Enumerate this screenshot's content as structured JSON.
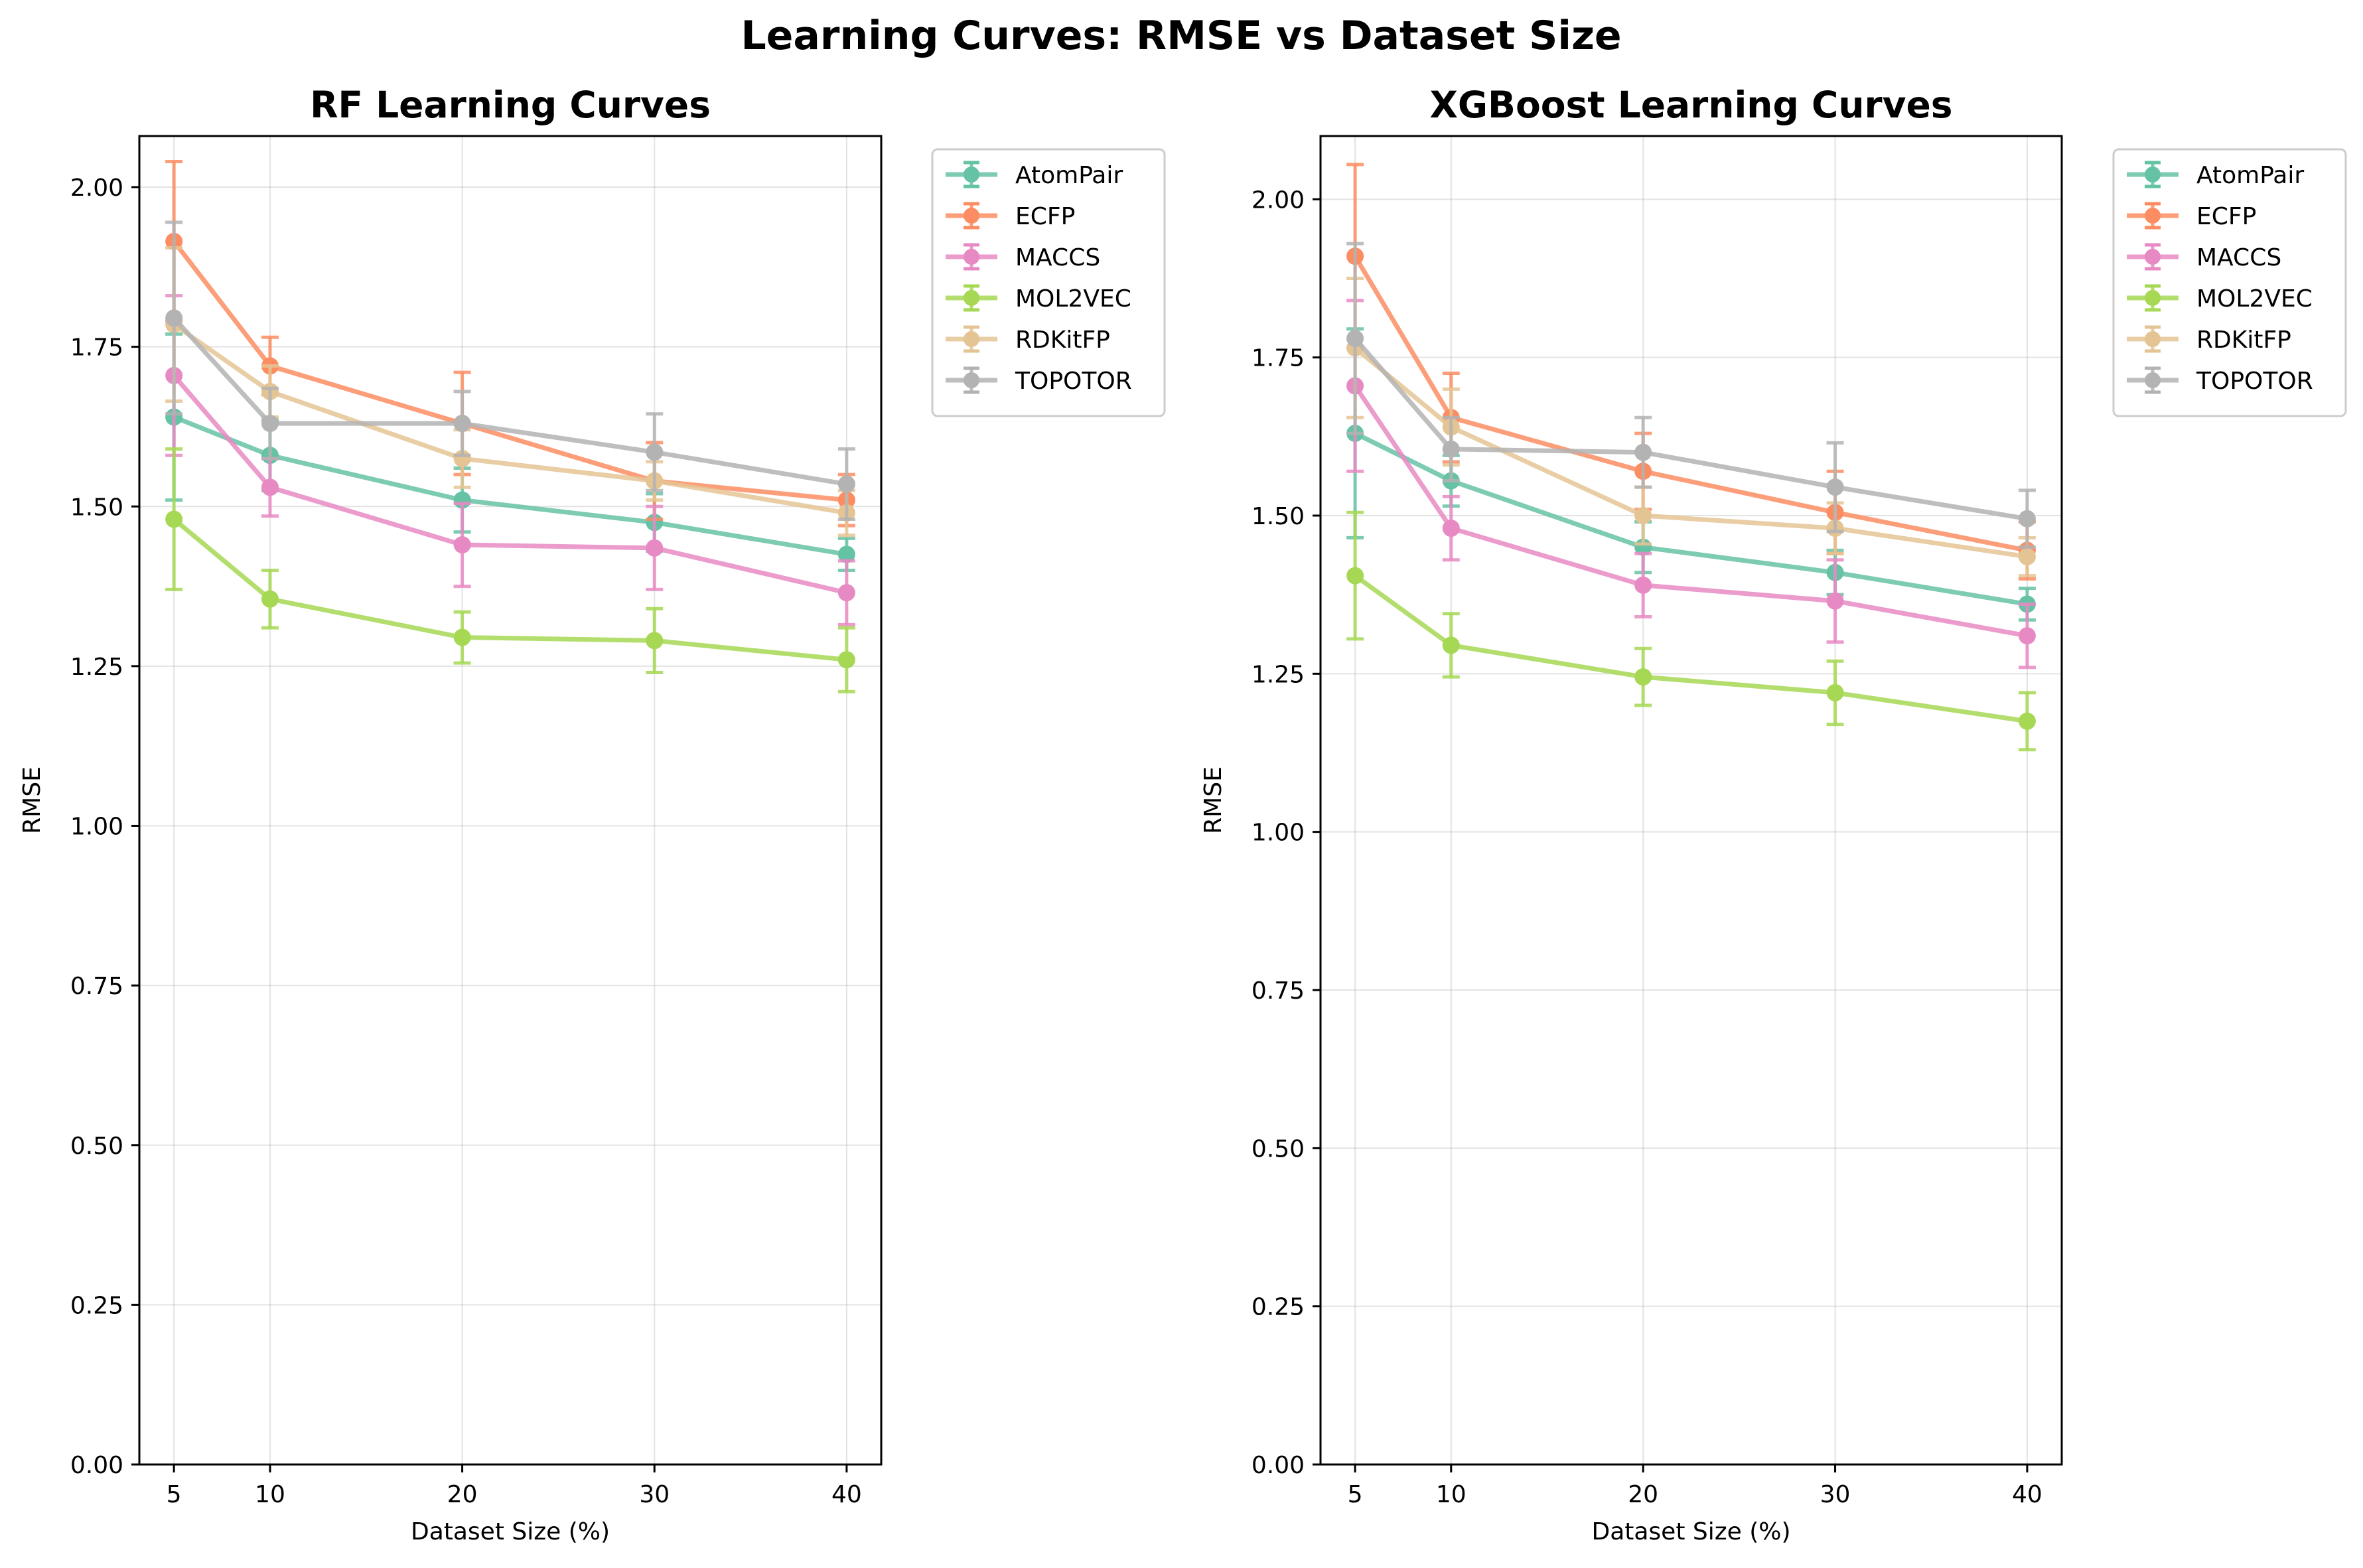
{
  "figure": {
    "title": "Learning Curves: RMSE vs Dataset Size"
  },
  "chart_data": [
    {
      "type": "line",
      "title": "RF Learning Curves",
      "xlabel": "Dataset Size (%)",
      "ylabel": "RMSE",
      "xlim": [
        3.2,
        41.8
      ],
      "ylim": [
        0,
        2.08
      ],
      "x_ticks": [
        5,
        10,
        20,
        30,
        40
      ],
      "y_ticks": [
        0.0,
        0.25,
        0.5,
        0.75,
        1.0,
        1.25,
        1.5,
        1.75,
        2.0
      ],
      "grid": true,
      "legend": "outside-upper-right",
      "x": [
        5,
        10,
        20,
        30,
        40
      ],
      "series": [
        {
          "name": "AtomPair",
          "color": "#66c2a5",
          "values": [
            1.64,
            1.58,
            1.51,
            1.475,
            1.425
          ],
          "errors": [
            0.13,
            0.055,
            0.05,
            0.045,
            0.025
          ]
        },
        {
          "name": "ECFP",
          "color": "#fc8d62",
          "values": [
            1.915,
            1.72,
            1.63,
            1.54,
            1.51
          ],
          "errors": [
            0.125,
            0.045,
            0.08,
            0.06,
            0.04
          ]
        },
        {
          "name": "MACCS",
          "color": "#e78ac3",
          "values": [
            1.705,
            1.53,
            1.44,
            1.435,
            1.365
          ],
          "errors": [
            0.125,
            0.045,
            0.065,
            0.065,
            0.05
          ]
        },
        {
          "name": "MOL2VEC",
          "color": "#a6d854",
          "values": [
            1.48,
            1.355,
            1.295,
            1.29,
            1.26
          ],
          "errors": [
            0.11,
            0.045,
            0.04,
            0.05,
            0.05
          ]
        },
        {
          "name": "RDKitFP",
          "color": "#e5c494",
          "values": [
            1.785,
            1.68,
            1.575,
            1.54,
            1.49
          ],
          "errors": [
            0.12,
            0.04,
            0.045,
            0.03,
            0.035
          ]
        },
        {
          "name": "TOPOTOR",
          "color": "#b3b3b3",
          "values": [
            1.795,
            1.63,
            1.63,
            1.585,
            1.535
          ],
          "errors": [
            0.15,
            0.055,
            0.05,
            0.06,
            0.055
          ]
        }
      ]
    },
    {
      "type": "line",
      "title": "XGBoost Learning Curves",
      "xlabel": "Dataset Size (%)",
      "ylabel": "RMSE",
      "xlim": [
        3.2,
        41.8
      ],
      "ylim": [
        0,
        2.1
      ],
      "x_ticks": [
        5,
        10,
        20,
        30,
        40
      ],
      "y_ticks": [
        0.0,
        0.25,
        0.5,
        0.75,
        1.0,
        1.25,
        1.5,
        1.75,
        2.0
      ],
      "grid": true,
      "legend": "outside-upper-right",
      "x": [
        5,
        10,
        20,
        30,
        40
      ],
      "series": [
        {
          "name": "AtomPair",
          "color": "#66c2a5",
          "values": [
            1.63,
            1.555,
            1.45,
            1.41,
            1.36
          ],
          "errors": [
            0.165,
            0.04,
            0.04,
            0.035,
            0.025
          ]
        },
        {
          "name": "ECFP",
          "color": "#fc8d62",
          "values": [
            1.91,
            1.655,
            1.57,
            1.505,
            1.445
          ],
          "errors": [
            0.145,
            0.07,
            0.06,
            0.065,
            0.045
          ]
        },
        {
          "name": "MACCS",
          "color": "#e78ac3",
          "values": [
            1.705,
            1.48,
            1.39,
            1.365,
            1.31
          ],
          "errors": [
            0.135,
            0.05,
            0.05,
            0.065,
            0.05
          ]
        },
        {
          "name": "MOL2VEC",
          "color": "#a6d854",
          "values": [
            1.405,
            1.295,
            1.245,
            1.22,
            1.175
          ],
          "errors": [
            0.1,
            0.05,
            0.045,
            0.05,
            0.045
          ]
        },
        {
          "name": "RDKitFP",
          "color": "#e5c494",
          "values": [
            1.765,
            1.64,
            1.5,
            1.48,
            1.435
          ],
          "errors": [
            0.11,
            0.06,
            0.045,
            0.04,
            0.03
          ]
        },
        {
          "name": "TOPOTOR",
          "color": "#b3b3b3",
          "values": [
            1.78,
            1.605,
            1.6,
            1.545,
            1.495
          ],
          "errors": [
            0.15,
            0.05,
            0.055,
            0.07,
            0.045
          ]
        }
      ]
    }
  ]
}
